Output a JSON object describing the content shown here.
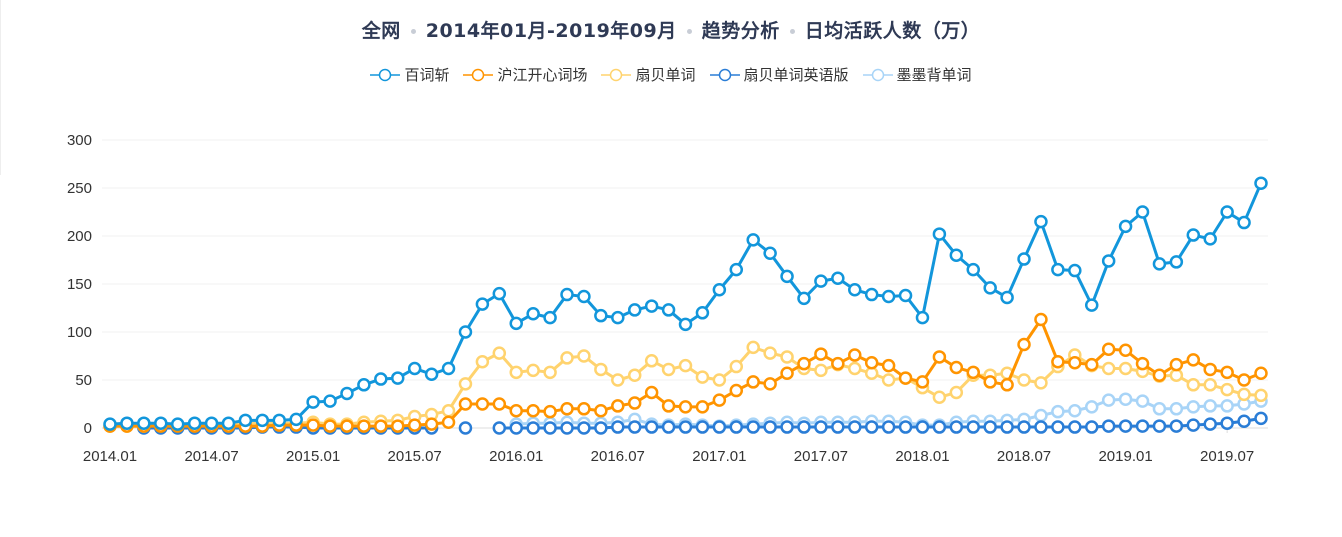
{
  "title": {
    "parts": [
      "全网",
      "2014年01月-2019年09月",
      "趋势分析",
      "日均活跃人数（万）"
    ]
  },
  "legend": [
    {
      "name": "百词斩",
      "color": "#1296db"
    },
    {
      "name": "沪江开心词场",
      "color": "#ff9400"
    },
    {
      "name": "扇贝单词",
      "color": "#ffd36e"
    },
    {
      "name": "扇贝单词英语版",
      "color": "#2a7dd6"
    },
    {
      "name": "墨墨背单词",
      "color": "#a8d4f7"
    }
  ],
  "chart_data": {
    "type": "line",
    "title": "全网 · 2014年01月-2019年09月 · 趋势分析 · 日均活跃人数（万）",
    "xlabel": "",
    "ylabel": "日均活跃人数（万）",
    "ylim": [
      0,
      300
    ],
    "yticks": [
      0,
      50,
      100,
      150,
      200,
      250,
      300
    ],
    "xtick_labels": [
      "2014.01",
      "2014.07",
      "2015.01",
      "2015.07",
      "2016.01",
      "2016.07",
      "2017.01",
      "2017.07",
      "2018.01",
      "2018.07",
      "2019.01",
      "2019.07"
    ],
    "grid": true,
    "legend_position": "top",
    "x": [
      "2014.01",
      "2014.02",
      "2014.03",
      "2014.04",
      "2014.05",
      "2014.06",
      "2014.07",
      "2014.08",
      "2014.09",
      "2014.10",
      "2014.11",
      "2014.12",
      "2015.01",
      "2015.02",
      "2015.03",
      "2015.04",
      "2015.05",
      "2015.06",
      "2015.07",
      "2015.08",
      "2015.09",
      "2015.10",
      "2015.11",
      "2015.12",
      "2016.01",
      "2016.02",
      "2016.03",
      "2016.04",
      "2016.05",
      "2016.06",
      "2016.07",
      "2016.08",
      "2016.09",
      "2016.10",
      "2016.11",
      "2016.12",
      "2017.01",
      "2017.02",
      "2017.03",
      "2017.04",
      "2017.05",
      "2017.06",
      "2017.07",
      "2017.08",
      "2017.09",
      "2017.10",
      "2017.11",
      "2017.12",
      "2018.01",
      "2018.02",
      "2018.03",
      "2018.04",
      "2018.05",
      "2018.06",
      "2018.07",
      "2018.08",
      "2018.09",
      "2018.10",
      "2018.11",
      "2018.12",
      "2019.01",
      "2019.02",
      "2019.03",
      "2019.04",
      "2019.05",
      "2019.06",
      "2019.07",
      "2019.08",
      "2019.09"
    ],
    "series": [
      {
        "name": "百词斩",
        "color": "#1296db",
        "values": [
          4,
          5,
          5,
          5,
          4,
          5,
          5,
          5,
          8,
          8,
          8,
          9,
          27,
          28,
          36,
          45,
          51,
          52,
          62,
          56,
          62,
          100,
          129,
          140,
          109,
          119,
          115,
          139,
          137,
          117,
          115,
          123,
          127,
          123,
          108,
          120,
          144,
          165,
          196,
          182,
          158,
          135,
          153,
          156,
          144,
          139,
          137,
          138,
          115,
          202,
          180,
          165,
          146,
          136,
          176,
          215,
          165,
          164,
          128,
          174,
          210,
          225,
          171,
          173,
          201,
          197,
          225,
          214,
          255
        ]
      },
      {
        "name": "沪江开心词场",
        "color": "#ff9400",
        "values": [
          2,
          2,
          2,
          2,
          2,
          2,
          2,
          2,
          2,
          2,
          3,
          3,
          3,
          2,
          2,
          2,
          2,
          2,
          3,
          4,
          6,
          25,
          25,
          25,
          18,
          18,
          17,
          20,
          20,
          18,
          23,
          26,
          37,
          23,
          22,
          22,
          29,
          39,
          48,
          46,
          57,
          67,
          77,
          67,
          76,
          68,
          65,
          52,
          48,
          74,
          63,
          58,
          48,
          45,
          87,
          113,
          69,
          68,
          66,
          82,
          81,
          67,
          55,
          66,
          71,
          61,
          58,
          50,
          57
        ]
      },
      {
        "name": "扇贝单词",
        "color": "#ffd36e",
        "values": [
          2,
          2,
          2,
          3,
          3,
          3,
          3,
          3,
          5,
          5,
          5,
          5,
          6,
          4,
          4,
          6,
          7,
          8,
          12,
          14,
          18,
          46,
          69,
          78,
          58,
          60,
          58,
          73,
          75,
          61,
          50,
          55,
          70,
          61,
          65,
          53,
          50,
          64,
          84,
          78,
          74,
          62,
          60,
          66,
          62,
          57,
          50,
          52,
          42,
          32,
          37,
          55,
          55,
          57,
          50,
          47,
          64,
          76,
          65,
          62,
          62,
          59,
          54,
          55,
          45,
          45,
          40,
          35,
          34
        ]
      },
      {
        "name": "扇贝单词英语版",
        "color": "#2a7dd6",
        "values": [
          null,
          null,
          0,
          0,
          0,
          0,
          0,
          0,
          0,
          1,
          1,
          1,
          0,
          0,
          0,
          0,
          0,
          0,
          0,
          0,
          null,
          0,
          null,
          0,
          0,
          0,
          0,
          0,
          0,
          0,
          1,
          1,
          1,
          1,
          1,
          1,
          1,
          1,
          1,
          1,
          1,
          1,
          1,
          1,
          1,
          1,
          1,
          1,
          1,
          1,
          1,
          1,
          1,
          1,
          1,
          1,
          1,
          1,
          1,
          2,
          2,
          2,
          2,
          2,
          3,
          4,
          5,
          7,
          10
        ]
      },
      {
        "name": "墨墨背单词",
        "color": "#a8d4f7",
        "values": [
          null,
          null,
          null,
          null,
          null,
          null,
          null,
          null,
          null,
          null,
          null,
          null,
          null,
          null,
          null,
          null,
          null,
          null,
          null,
          null,
          null,
          null,
          null,
          null,
          4,
          5,
          5,
          6,
          5,
          5,
          6,
          9,
          4,
          3,
          4,
          3,
          2,
          3,
          4,
          5,
          6,
          5,
          6,
          6,
          6,
          7,
          7,
          6,
          3,
          3,
          6,
          7,
          7,
          8,
          9,
          13,
          17,
          18,
          22,
          29,
          30,
          28,
          20,
          20,
          22,
          23,
          23,
          25,
          28
        ]
      }
    ]
  }
}
